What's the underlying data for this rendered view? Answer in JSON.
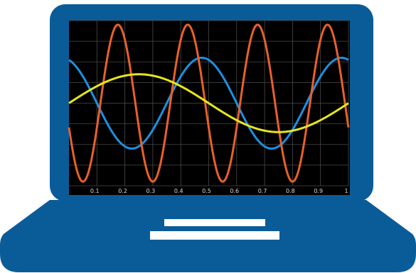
{
  "illustration": {
    "subject": "laptop-oscilloscope-icon",
    "colors": {
      "laptop_body": "#0a5c99",
      "screen": "#000000",
      "grid": "#4a4a4a",
      "trackpad_bars": "#ffffff",
      "tick_text": "#d8d8d8"
    }
  },
  "chart_data": {
    "type": "line",
    "title": "",
    "xlabel": "",
    "ylabel": "",
    "xlim": [
      0,
      1
    ],
    "ylim": [
      -1,
      1
    ],
    "grid": true,
    "x_tick_labels": [
      "0.1",
      "0.2",
      "0.3",
      "0.4",
      "0.5",
      "0.6",
      "0.7",
      "0.8",
      "0.9",
      "1"
    ],
    "series": [
      {
        "color": "#1e90e0",
        "function": "sin",
        "amplitude": 0.55,
        "cycles_per_unit": 2,
        "phase": 0.3
      },
      {
        "color": "#e8602a",
        "function": "sin",
        "amplitude": 0.95,
        "cycles_per_unit": 4,
        "phase": 0.55
      },
      {
        "color": "#e6e61e",
        "function": "sin",
        "amplitude": 0.35,
        "cycles_per_unit": 1,
        "phase": 0.0
      }
    ]
  }
}
